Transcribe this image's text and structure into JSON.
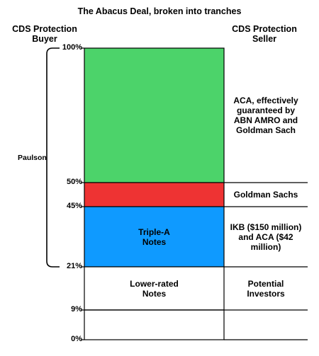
{
  "title": "The Abacus Deal, broken into tranches",
  "buyer_heading": [
    "CDS Protection",
    "Buyer"
  ],
  "seller_heading": [
    "CDS Protection",
    "Seller"
  ],
  "buyer_label": "Paulson",
  "colors": {
    "equity_tranche": "#4cd36a",
    "mezz_tranche": "#ee3333",
    "senior_tranche": "#0f9aff",
    "lower_tranche": "#ffffff",
    "outline": "#000000"
  },
  "levels": [
    {
      "value": 100,
      "label": "100%"
    },
    {
      "value": 50,
      "label": "50%"
    },
    {
      "value": 45,
      "label": "45%"
    },
    {
      "value": 21,
      "label": "21%"
    },
    {
      "value": 9,
      "label": "9%"
    },
    {
      "value": 0,
      "label": "0%"
    }
  ],
  "tranches": [
    {
      "from": 50,
      "to": 100,
      "color_key": "equity_tranche",
      "label": [],
      "seller": [
        "ACA, effectively",
        "guaranteed by",
        "ABN AMRO and",
        "Goldman Sach"
      ]
    },
    {
      "from": 45,
      "to": 50,
      "color_key": "mezz_tranche",
      "label": [],
      "seller": [
        "Goldman Sachs"
      ]
    },
    {
      "from": 21,
      "to": 45,
      "color_key": "senior_tranche",
      "label": [
        "Triple-A",
        "Notes"
      ],
      "seller": [
        "IKB ($150 million)",
        "and ACA ($42",
        "million)"
      ]
    },
    {
      "from": 9,
      "to": 21,
      "color_key": "lower_tranche",
      "label": [
        "Lower-rated",
        "Notes"
      ],
      "seller": [
        "Potential",
        "Investors"
      ]
    },
    {
      "from": 0,
      "to": 9,
      "color_key": "lower_tranche",
      "label": [],
      "seller": []
    }
  ]
}
